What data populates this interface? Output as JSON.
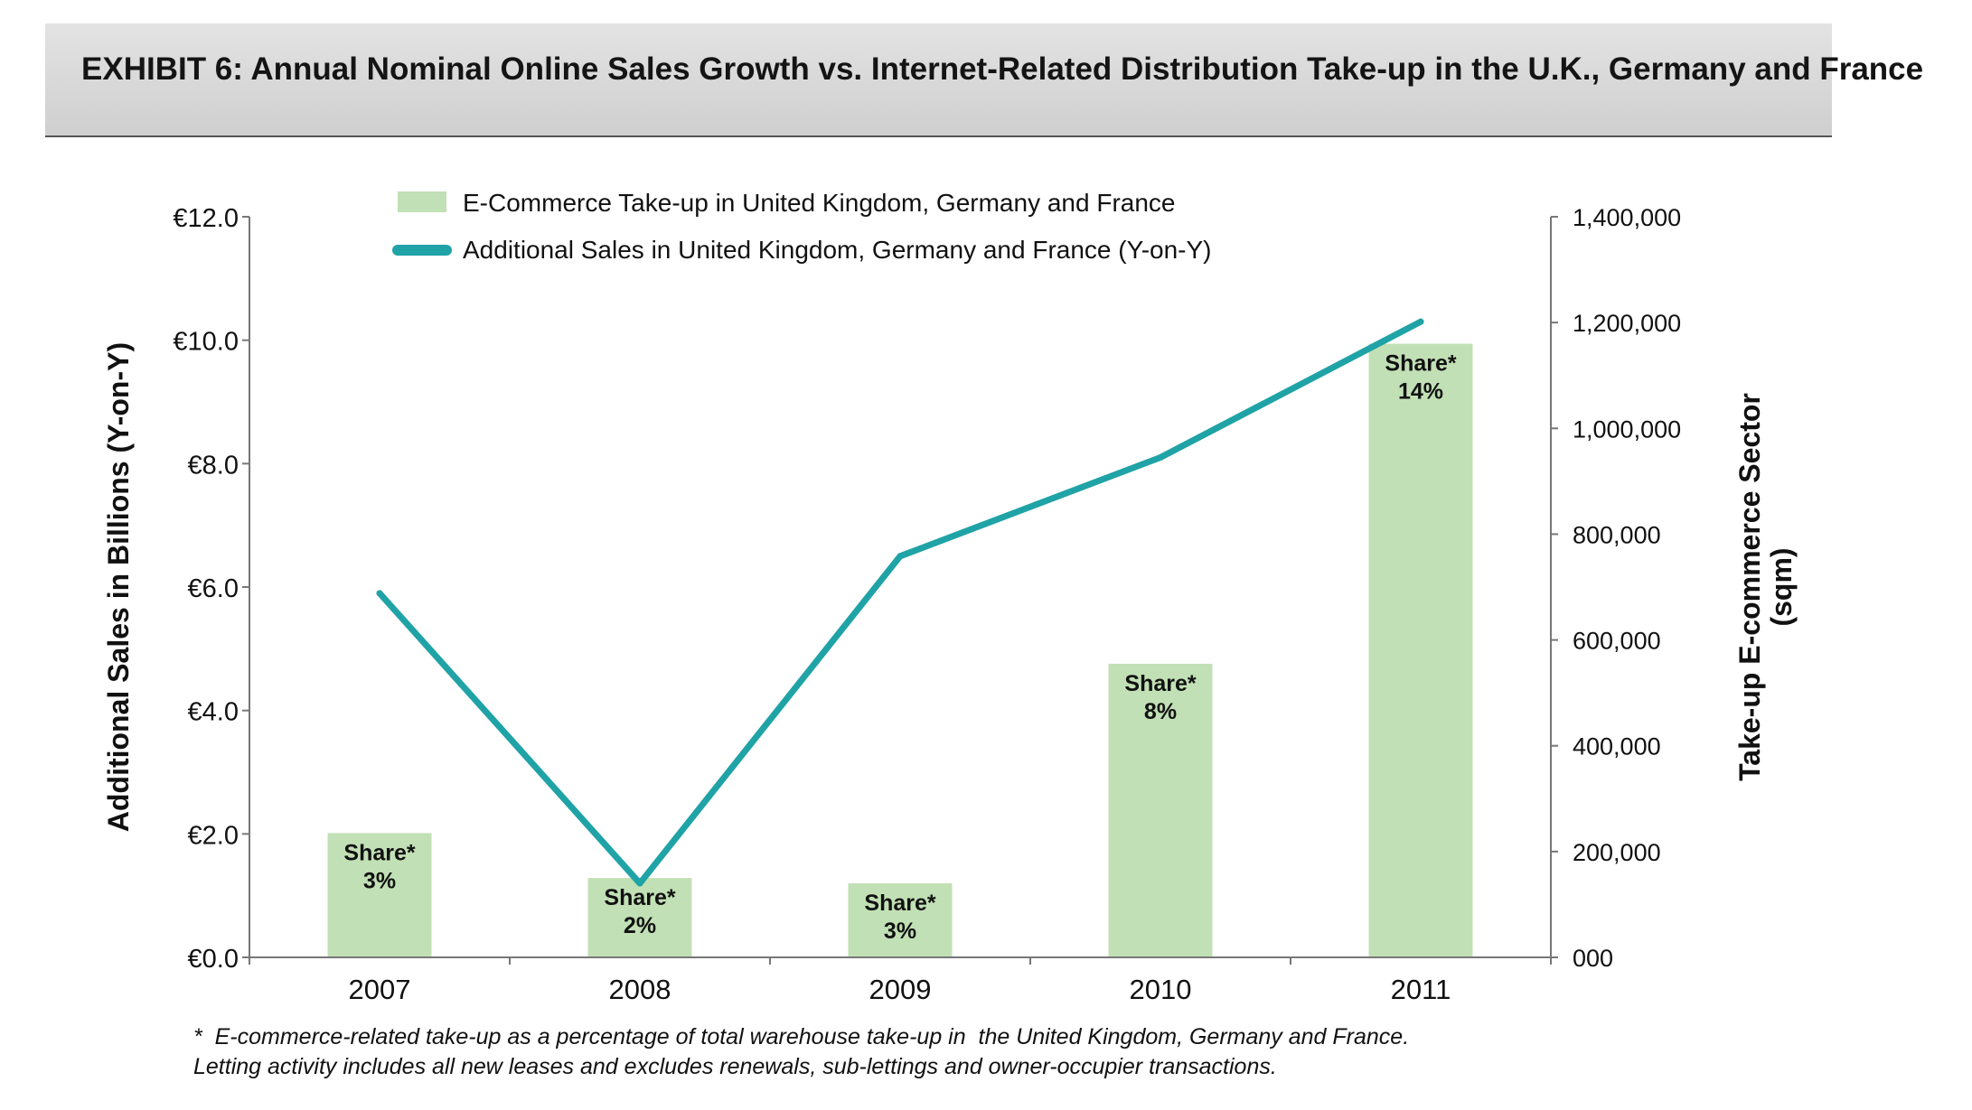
{
  "header": {
    "title": "EXHIBIT 6: Annual Nominal Online Sales Growth vs. Internet-Related Distribution Take-up in the U.K., Germany and France"
  },
  "footnote": {
    "line1": "*  E-commerce-related take-up as a percentage of total warehouse take-up in  the United Kingdom, Germany and France.",
    "line2": "Letting activity includes all new leases and excludes renewals, sub-lettings and owner-occupier transactions."
  },
  "chart_data": {
    "type": "bar",
    "categories": [
      "2007",
      "2008",
      "2009",
      "2010",
      "2011"
    ],
    "series": [
      {
        "name": "E-Commerce Take-up in United Kingdom, Germany and France",
        "type": "bar",
        "axis": "right",
        "values": [
          235000,
          150000,
          140000,
          555000,
          1160000
        ],
        "labels": [
          [
            "Share*",
            "3%"
          ],
          [
            "Share*",
            "2%"
          ],
          [
            "Share*",
            "3%"
          ],
          [
            "Share*",
            "8%"
          ],
          [
            "Share*",
            "14%"
          ]
        ],
        "color": "#c1e0b5"
      },
      {
        "name": "Additional Sales in United Kingdom, Germany and France (Y-on-Y)",
        "type": "line",
        "axis": "left",
        "values": [
          5.9,
          1.2,
          6.5,
          8.1,
          10.3
        ],
        "color": "#1fa3a6"
      }
    ],
    "left_axis": {
      "label": "Additional Sales in Billions (Y-on-Y)",
      "min": 0,
      "max": 12,
      "ticks": [
        0,
        2,
        4,
        6,
        8,
        10,
        12
      ],
      "tick_labels": [
        "€0.0",
        "€2.0",
        "€4.0",
        "€6.0",
        "€8.0",
        "€10.0",
        "€12.0"
      ]
    },
    "right_axis": {
      "label_line1": "Take-up E-commerce Sector",
      "label_line2": "(sqm)",
      "min": 0,
      "max": 1400000,
      "ticks": [
        0,
        200000,
        400000,
        600000,
        800000,
        1000000,
        1200000,
        1400000
      ],
      "tick_labels": [
        "000",
        "200,000",
        "400,000",
        "600,000",
        "800,000",
        "1,000,000",
        "1,200,000",
        "1,400,000"
      ]
    },
    "legend": {
      "position": "top-center"
    }
  }
}
